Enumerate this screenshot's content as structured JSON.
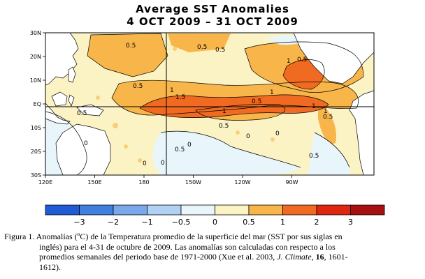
{
  "header": {
    "title": "Average SST Anomalies",
    "period": "4 OCT 2009 – 31 OCT 2009"
  },
  "map": {
    "lat_ticks": [
      "30N",
      "20N",
      "10N",
      "EQ",
      "10S",
      "20S",
      "30S"
    ],
    "lon_ticks": [
      "120E",
      "150E",
      "180",
      "150W",
      "120W",
      "90W"
    ],
    "contour_labels": [
      "0.5",
      "0.5",
      "0.5",
      "0.5",
      "1",
      "1",
      "1",
      "1.5",
      "1",
      "1",
      "1",
      "0.5",
      "0.5",
      "0.5",
      "0.5",
      "0",
      "0",
      "0",
      "0",
      "0.5",
      "0",
      "0",
      "0.5",
      "0.5"
    ],
    "colors": {
      "land": "#ffffff",
      "lt_-3": "#1f5bd4",
      "-3_-2": "#3f7fe0",
      "-2_-1": "#79a9ea",
      "-1_-0.5": "#b0d0f4",
      "-0.5_0": "#e8f6fb",
      "0_0.5": "#fcf3c4",
      "0.5_1": "#f8b64a",
      "1_2": "#f06a21",
      "2_3": "#de2610",
      "gt_3": "#a80f10"
    }
  },
  "colorbar": {
    "tick_labels": [
      "−3",
      "−2",
      "−1",
      "−0.5",
      "0",
      "0.5",
      "1",
      "2",
      "3"
    ],
    "colors": [
      "#1f5bd4",
      "#3f7fe0",
      "#79a9ea",
      "#b0d0f4",
      "#e8f6fb",
      "#fcf3c4",
      "#f8b64a",
      "#f06a21",
      "#de2610",
      "#a80f10"
    ]
  },
  "caption": {
    "part1": "Figura 1. Anomalías (ºC) de la Temperatura promedio de la superficie del mar (SST por sus siglas en",
    "part2": "inglés) para el 4-31 de octubre de 2009. Las anomalías son calculadas con respecto a los",
    "part3": "promedios semanales del periodo base de 1971-2000 (Xue et al. 2003, ",
    "journal": "J. Climate",
    "sep1": ", ",
    "volume": "16",
    "sep2": ", 1601-",
    "part4": "1612)."
  }
}
